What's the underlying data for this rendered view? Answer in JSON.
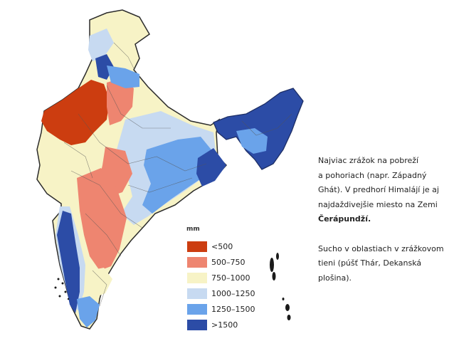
{
  "legend": {
    "title": "mm",
    "items": [
      {
        "label": "<500",
        "color": "#cc3d10"
      },
      {
        "label": "500–750",
        "color": "#ee8570"
      },
      {
        "label": "750–1000",
        "color": "#f7f3c6"
      },
      {
        "label": "1000–1250",
        "color": "#c7daf1"
      },
      {
        "label": "1250–1500",
        "color": "#6aa3ea"
      },
      {
        "label": ">1500",
        "color": "#2c4ca6"
      }
    ]
  },
  "text": {
    "para1_lines": [
      "Najviac zrážok na pobreží",
      "a pohoriach (napr. Západný",
      "Ghát). V predhorí Himalájí je aj",
      "najdaždivejšie miesto na Zemi"
    ],
    "para1_bold": "Čerápundží.",
    "para2_lines": [
      "Sucho v oblastiach v zrážkovom",
      "tieni (púšť Thár, Dekanská",
      "plošina)."
    ]
  }
}
